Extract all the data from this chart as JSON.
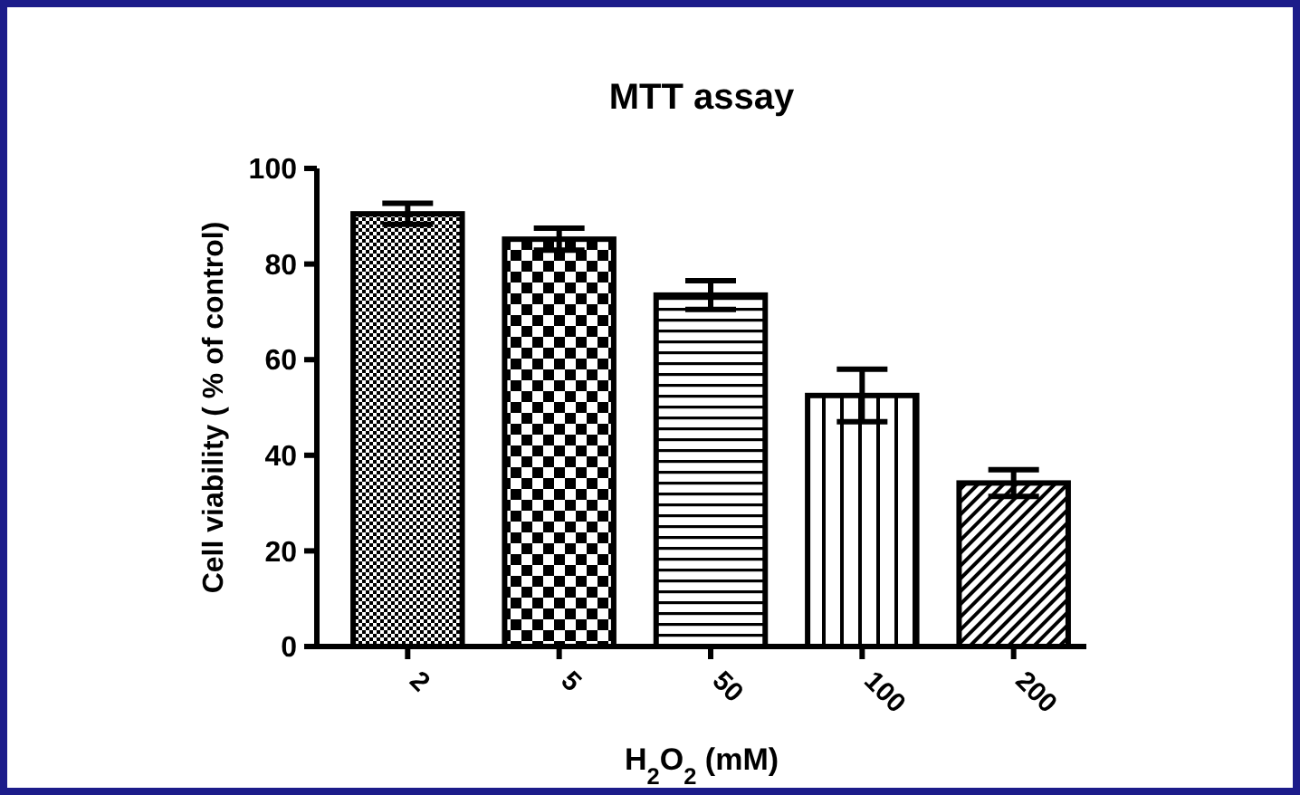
{
  "chart_data": {
    "type": "bar",
    "title": "MTT assay",
    "xlabel": "H$_{2}$O$_{2}$ (mM)",
    "ylabel": "Cell viability ( % of control)",
    "categories": [
      "2",
      "5",
      "50",
      "100",
      "200"
    ],
    "values": [
      90.5,
      85.2,
      73.5,
      52.5,
      34.2
    ],
    "errors": [
      2.2,
      2.3,
      3,
      5.5,
      2.8
    ],
    "colors": [
      "#000000",
      "#000000",
      "#000000",
      "#000000",
      "#000000"
    ],
    "ylim": [
      0,
      100
    ],
    "yticks": [
      0,
      20,
      40,
      60,
      80,
      100
    ]
  }
}
